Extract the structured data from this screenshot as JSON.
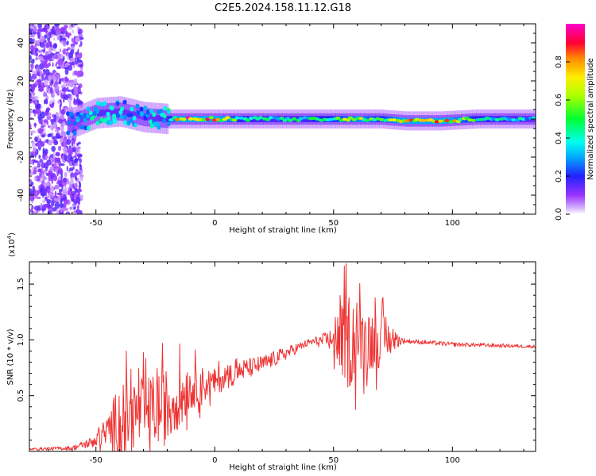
{
  "figure": {
    "title": "C2E5.2024.158.11.12.G18"
  },
  "chart_data": [
    {
      "type": "heatmap",
      "title": "C2E5.2024.158.11.12.G18",
      "xlabel": "Height of straight line (km)",
      "ylabel": "Frequency (Hz)",
      "xlim": [
        -78,
        135
      ],
      "ylim": [
        -50,
        50
      ],
      "x_ticks": [
        -50,
        0,
        50,
        100
      ],
      "y_ticks": [
        -40,
        -20,
        0,
        20,
        40
      ],
      "x_tick_labels": [
        "-50",
        "0",
        "50",
        "100"
      ],
      "y_tick_labels": [
        "-40",
        "-20",
        "0",
        "20",
        "40"
      ],
      "colorbar": {
        "label": "Normalized spectral amplitude",
        "range": [
          0,
          1
        ],
        "ticks": [
          0.0,
          0.2,
          0.4,
          0.6,
          0.8
        ],
        "tick_labels": [
          "0.0",
          "0.2",
          "0.4",
          "0.6",
          "0.8"
        ],
        "colormap": "rainbow"
      },
      "ridge": [
        {
          "x": -60,
          "f": -2,
          "amp": 0.3
        },
        {
          "x": -50,
          "f": 3,
          "amp": 0.45
        },
        {
          "x": -40,
          "f": 4,
          "amp": 0.4
        },
        {
          "x": -30,
          "f": 1,
          "amp": 0.35
        },
        {
          "x": -20,
          "f": 0,
          "amp": 0.5
        },
        {
          "x": -15,
          "f": 0,
          "amp": 0.95
        },
        {
          "x": 0,
          "f": 0,
          "amp": 0.95
        },
        {
          "x": 10,
          "f": 0,
          "amp": 0.55
        },
        {
          "x": 30,
          "f": 0,
          "amp": 0.45
        },
        {
          "x": 50,
          "f": 0,
          "amp": 0.6
        },
        {
          "x": 60,
          "f": 0,
          "amp": 0.8
        },
        {
          "x": 70,
          "f": 0,
          "amp": 0.6
        },
        {
          "x": 80,
          "f": -1,
          "amp": 0.95
        },
        {
          "x": 95,
          "f": -1,
          "amp": 0.95
        },
        {
          "x": 110,
          "f": 0,
          "amp": 0.55
        },
        {
          "x": 135,
          "f": 0,
          "amp": 0.4
        }
      ]
    },
    {
      "type": "line",
      "xlabel": "Height of straight line (km)",
      "ylabel": "SNR (10 * v/v)",
      "y_scale_label": "(x10",
      "y_scale_exponent": "4",
      "y_scale_close": ")",
      "xlim": [
        -78,
        135
      ],
      "ylim": [
        0,
        1.7
      ],
      "x_ticks": [
        -50,
        0,
        50,
        100
      ],
      "y_ticks": [
        0.5,
        1.0,
        1.5
      ],
      "x_tick_labels": [
        "-50",
        "0",
        "50",
        "100"
      ],
      "y_tick_labels": [
        "0.5",
        "1.0",
        "1.5"
      ],
      "series": [
        {
          "color": "#ee3333",
          "envelope": [
            {
              "x": -78,
              "mean": 0.02,
              "amp": 0.01
            },
            {
              "x": -60,
              "mean": 0.03,
              "amp": 0.02
            },
            {
              "x": -52,
              "mean": 0.08,
              "amp": 0.05
            },
            {
              "x": -45,
              "mean": 0.18,
              "amp": 0.15
            },
            {
              "x": -40,
              "mean": 0.3,
              "amp": 0.35
            },
            {
              "x": -30,
              "mean": 0.35,
              "amp": 0.3
            },
            {
              "x": -20,
              "mean": 0.4,
              "amp": 0.35
            },
            {
              "x": -10,
              "mean": 0.58,
              "amp": 0.2
            },
            {
              "x": 0,
              "mean": 0.62,
              "amp": 0.12
            },
            {
              "x": 10,
              "mean": 0.72,
              "amp": 0.1
            },
            {
              "x": 20,
              "mean": 0.78,
              "amp": 0.08
            },
            {
              "x": 30,
              "mean": 0.88,
              "amp": 0.06
            },
            {
              "x": 40,
              "mean": 0.98,
              "amp": 0.03
            },
            {
              "x": 48,
              "mean": 1.0,
              "amp": 0.08
            },
            {
              "x": 52,
              "mean": 1.0,
              "amp": 0.25
            },
            {
              "x": 56,
              "mean": 1.0,
              "amp": 0.45
            },
            {
              "x": 62,
              "mean": 1.0,
              "amp": 0.3
            },
            {
              "x": 70,
              "mean": 1.0,
              "amp": 0.25
            },
            {
              "x": 76,
              "mean": 1.0,
              "amp": 0.08
            },
            {
              "x": 80,
              "mean": 0.99,
              "amp": 0.02
            },
            {
              "x": 100,
              "mean": 0.96,
              "amp": 0.02
            },
            {
              "x": 135,
              "mean": 0.94,
              "amp": 0.015
            }
          ]
        }
      ]
    }
  ],
  "colors": {
    "line": "#ee3333",
    "axis": "#000000",
    "background": "#ffffff"
  }
}
